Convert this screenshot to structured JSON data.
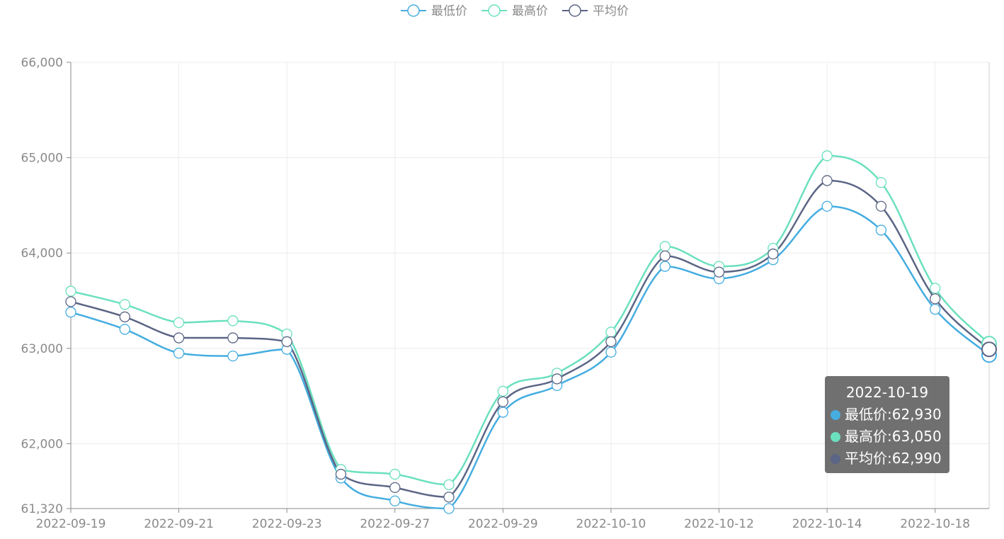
{
  "legend": [
    {
      "name": "最低价",
      "color": "#45ade0"
    },
    {
      "name": "最高价",
      "color": "#6ae0be"
    },
    {
      "name": "平均价",
      "color": "#5b6585"
    }
  ],
  "tooltip": {
    "title": "2022-10-19",
    "rows": [
      {
        "label": "最低价",
        "value": "62,930",
        "color": "#45ade0"
      },
      {
        "label": "最高价",
        "value": "63,050",
        "color": "#6ae0be"
      },
      {
        "label": "平均价",
        "value": "62,990",
        "color": "#5b6585"
      }
    ]
  },
  "chart_data": {
    "type": "line",
    "title": "",
    "xlabel": "",
    "ylabel": "",
    "ylim": [
      61320,
      66000
    ],
    "y_ticks": [
      "61,320",
      "62,000",
      "63,000",
      "64,000",
      "65,000",
      "66,000"
    ],
    "y_tick_values": [
      61320,
      62000,
      63000,
      64000,
      65000,
      66000
    ],
    "x": [
      "2022-09-19",
      "2022-09-20",
      "2022-09-21",
      "2022-09-22",
      "2022-09-23",
      "2022-09-26",
      "2022-09-27",
      "2022-09-28",
      "2022-09-29",
      "2022-09-30",
      "2022-10-10",
      "2022-10-11",
      "2022-10-12",
      "2022-10-13",
      "2022-10-14",
      "2022-10-17",
      "2022-10-18",
      "2022-10-19"
    ],
    "x_tick_labels": [
      "2022-09-19",
      "2022-09-21",
      "2022-09-23",
      "2022-09-27",
      "2022-09-29",
      "2022-10-10",
      "2022-10-12",
      "2022-10-14",
      "2022-10-18"
    ],
    "x_tick_indices": [
      0,
      2,
      4,
      6,
      8,
      10,
      12,
      14,
      16
    ],
    "grid": true,
    "legend_position": "top",
    "series": [
      {
        "name": "最低价",
        "color": "#45ade0",
        "values": [
          63380,
          63200,
          62950,
          62920,
          62990,
          61640,
          61400,
          61320,
          62330,
          62610,
          62960,
          63860,
          63730,
          63930,
          64490,
          64240,
          63410,
          62930
        ]
      },
      {
        "name": "最高价",
        "color": "#6ae0be",
        "values": [
          63600,
          63460,
          63270,
          63290,
          63150,
          61730,
          61680,
          61570,
          62550,
          62740,
          63170,
          64070,
          63860,
          64050,
          65020,
          64740,
          63630,
          63050
        ]
      },
      {
        "name": "平均价",
        "color": "#5b6585",
        "values": [
          63490,
          63330,
          63110,
          63110,
          63070,
          61680,
          61540,
          61440,
          62440,
          62680,
          63070,
          63970,
          63800,
          63990,
          64760,
          64490,
          63520,
          62990
        ]
      }
    ]
  }
}
